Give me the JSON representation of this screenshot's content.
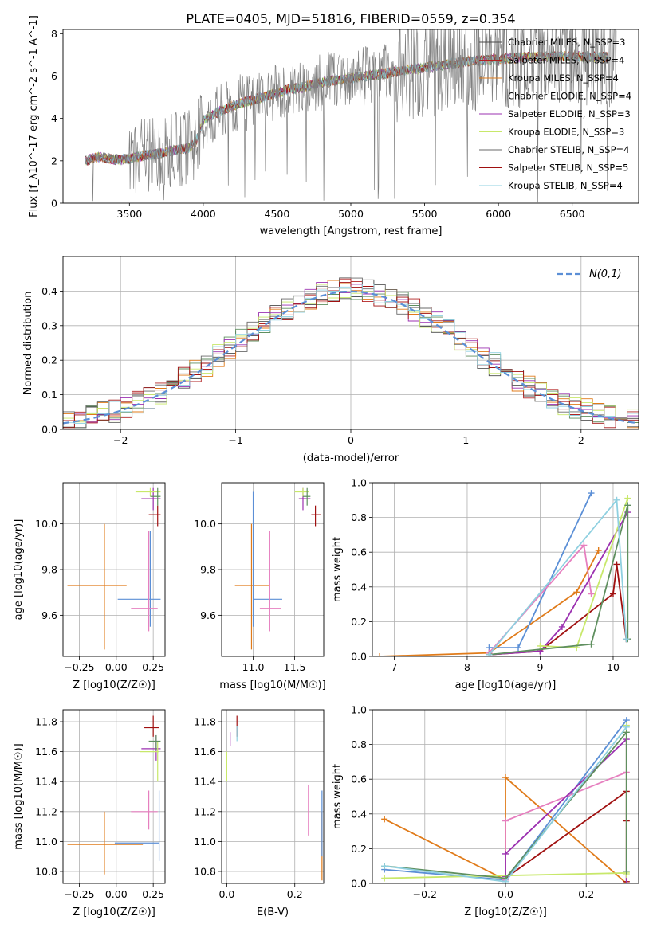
{
  "title": "PLATE=0405, MJD=51816, FIBERID=0559, z=0.354",
  "colors": {
    "chabrier_miles": "#4a4a4a",
    "salpeter_miles": "#b22222",
    "kroupa_miles": "#e07b1a",
    "chabrier_elodie": "#5f8f5f",
    "salpeter_elodie": "#9b30b0",
    "kroupa_elodie": "#c8e86a",
    "chabrier_stelib": "#6a6a6a",
    "salpeter_stelib": "#a01010",
    "kroupa_stelib": "#8fd0e0",
    "normal_fit": "#5b8fd6",
    "pink": "#e67fbf",
    "blue": "#5b8fd6"
  },
  "chart_data": [
    {
      "panel": "spectrum",
      "type": "line",
      "xlabel": "wavelength [Angstrom, rest frame]",
      "ylabel": "Flux [f_λ10^-17 erg cm^-2 s^-1 A^-1]",
      "xlim": [
        3050,
        6950
      ],
      "ylim": [
        0,
        8.2
      ],
      "xticks": [
        3500,
        4000,
        4500,
        5000,
        5500,
        6000,
        6500
      ],
      "yticks": [
        0,
        2,
        4,
        6,
        8
      ],
      "legend_position": "top-right",
      "legend": [
        {
          "label": "Chabrier MILES, N_SSP=3",
          "color": "#4a4a4a"
        },
        {
          "label": "Salpeter MILES, N_SSP=4",
          "color": "#b22222"
        },
        {
          "label": "Kroupa MILES, N_SSP=4",
          "color": "#e07b1a"
        },
        {
          "label": "Chabrier ELODIE, N_SSP=4",
          "color": "#5f8f5f"
        },
        {
          "label": "Salpeter ELODIE, N_SSP=3",
          "color": "#9b30b0"
        },
        {
          "label": "Kroupa ELODIE, N_SSP=3",
          "color": "#c8e86a"
        },
        {
          "label": "Chabrier STELIB, N_SSP=4",
          "color": "#6a6a6a"
        },
        {
          "label": "Salpeter STELIB, N_SSP=5",
          "color": "#a01010"
        },
        {
          "label": "Kroupa STELIB, N_SSP=4",
          "color": "#8fd0e0"
        }
      ],
      "continuum": {
        "x": [
          3200,
          3300,
          3400,
          3500,
          3600,
          3700,
          3800,
          3900,
          3950,
          4000,
          4100,
          4200,
          4300,
          4400,
          4500,
          4600,
          4700,
          4800,
          4900,
          5000,
          5100,
          5200,
          5300,
          5400,
          5500,
          5600,
          5700,
          5800,
          5900,
          6000,
          6100,
          6200,
          6300,
          6400,
          6500,
          6600,
          6700,
          6800
        ],
        "y": [
          2.0,
          2.2,
          2.05,
          2.1,
          2.25,
          2.35,
          2.5,
          2.6,
          2.9,
          3.9,
          4.3,
          4.6,
          4.8,
          5.0,
          5.2,
          5.4,
          5.5,
          5.7,
          5.8,
          5.9,
          6.0,
          6.1,
          6.2,
          6.3,
          6.4,
          6.5,
          6.6,
          6.7,
          6.75,
          6.8,
          6.85,
          6.9,
          6.9,
          6.95,
          6.95,
          6.9,
          6.9,
          6.9
        ]
      },
      "grid": false
    },
    {
      "panel": "residual_histogram",
      "type": "line",
      "xlabel": "(data-model)/error",
      "ylabel": "Normed distribution",
      "xlim": [
        -2.5,
        2.5
      ],
      "ylim": [
        0,
        0.5
      ],
      "xticks": [
        -2,
        -1,
        0,
        1,
        2
      ],
      "yticks": [
        0.0,
        0.1,
        0.2,
        0.3,
        0.4
      ],
      "legend": [
        {
          "label": "N(0,1)",
          "color": "#5b8fd6"
        }
      ],
      "legend_position": "top-right",
      "grid": true,
      "bin_width": 0.1
    },
    {
      "panel": "age_vs_Z",
      "type": "scatter",
      "xlabel": "Z [log10(Z/Z☉)]",
      "ylabel": "age [log10(age/yr)]",
      "xlim": [
        -0.36,
        0.33
      ],
      "ylim": [
        9.42,
        10.18
      ],
      "xticks": [
        -0.25,
        0.0,
        0.25
      ],
      "yticks": [
        9.6,
        9.8,
        10.0
      ],
      "grid": true,
      "points": [
        {
          "x": -0.08,
          "y": 9.73,
          "xerr": [
            0.25,
            0.15
          ],
          "yerr": [
            0.28,
            0.27
          ],
          "color": "#e07b1a"
        },
        {
          "x": 0.23,
          "y": 9.67,
          "xerr": [
            0.22,
            0.07
          ],
          "yerr": [
            0.12,
            0.3
          ],
          "color": "#5b8fd6"
        },
        {
          "x": 0.22,
          "y": 9.63,
          "xerr": [
            0.12,
            0.06
          ],
          "yerr": [
            0.1,
            0.34
          ],
          "color": "#e67fbf"
        },
        {
          "x": 0.28,
          "y": 10.04,
          "xerr": [
            0.06,
            0.02
          ],
          "yerr": [
            0.05,
            0.04
          ],
          "color": "#a01010"
        },
        {
          "x": 0.25,
          "y": 10.11,
          "xerr": [
            0.08,
            0.05
          ],
          "yerr": [
            0.05,
            0.05
          ],
          "color": "#9b30b0"
        },
        {
          "x": 0.23,
          "y": 10.14,
          "xerr": [
            0.1,
            0.07
          ],
          "yerr": [
            0.02,
            0.02
          ],
          "color": "#c8e86a"
        },
        {
          "x": 0.28,
          "y": 10.12,
          "xerr": [
            0.05,
            0.02
          ],
          "yerr": [
            0.04,
            0.04
          ],
          "color": "#5f8f5f"
        }
      ]
    },
    {
      "panel": "age_vs_mass",
      "type": "scatter",
      "xlabel": "mass [log10(M/M☉)]",
      "ylabel": "",
      "xlim": [
        10.62,
        11.85
      ],
      "ylim": [
        9.42,
        10.18
      ],
      "xticks": [
        11.0,
        11.5
      ],
      "yticks": [
        9.6,
        9.8,
        10.0
      ],
      "grid": true,
      "points": [
        {
          "x": 10.98,
          "y": 9.73,
          "xerr": [
            0.2,
            0.22
          ],
          "yerr": [
            0.28,
            0.27
          ],
          "color": "#e07b1a"
        },
        {
          "x": 11.0,
          "y": 9.67,
          "xerr": [
            0.0,
            0.35
          ],
          "yerr": [
            0.12,
            0.47
          ],
          "color": "#5b8fd6"
        },
        {
          "x": 11.2,
          "y": 9.63,
          "xerr": [
            0.12,
            0.14
          ],
          "yerr": [
            0.1,
            0.34
          ],
          "color": "#e67fbf"
        },
        {
          "x": 11.75,
          "y": 10.04,
          "xerr": [
            0.05,
            0.07
          ],
          "yerr": [
            0.05,
            0.04
          ],
          "color": "#a01010"
        },
        {
          "x": 11.6,
          "y": 10.11,
          "xerr": [
            0.05,
            0.09
          ],
          "yerr": [
            0.05,
            0.05
          ],
          "color": "#9b30b0"
        },
        {
          "x": 11.6,
          "y": 10.14,
          "xerr": [
            0.1,
            0.07
          ],
          "yerr": [
            0.02,
            0.02
          ],
          "color": "#c8e86a"
        },
        {
          "x": 11.65,
          "y": 10.12,
          "xerr": [
            0.05,
            0.04
          ],
          "yerr": [
            0.04,
            0.04
          ],
          "color": "#5f8f5f"
        }
      ]
    },
    {
      "panel": "mass_weight_vs_age",
      "type": "line",
      "xlabel": "age [log10(age/yr)]",
      "ylabel": "mass weight",
      "xlim": [
        6.7,
        10.35
      ],
      "ylim": [
        0,
        1.0
      ],
      "xticks": [
        7,
        8,
        9,
        10
      ],
      "yticks": [
        0.0,
        0.2,
        0.4,
        0.6,
        0.8,
        1.0
      ],
      "grid": true,
      "series": [
        {
          "color": "#e07b1a",
          "x": [
            6.8,
            8.3,
            9.5,
            9.8
          ],
          "y": [
            0.0,
            0.02,
            0.37,
            0.61
          ]
        },
        {
          "color": "#5b8fd6",
          "x": [
            8.3,
            8.7,
            9.7
          ],
          "y": [
            0.05,
            0.05,
            0.94
          ]
        },
        {
          "color": "#e67fbf",
          "x": [
            8.3,
            9.6,
            9.7
          ],
          "y": [
            0.02,
            0.64,
            0.36
          ]
        },
        {
          "color": "#a01010",
          "x": [
            8.3,
            9.0,
            10.0,
            10.05,
            10.18
          ],
          "y": [
            0.01,
            0.03,
            0.36,
            0.53,
            0.1
          ]
        },
        {
          "color": "#9b30b0",
          "x": [
            8.3,
            9.0,
            9.3,
            10.2
          ],
          "y": [
            0.01,
            0.03,
            0.17,
            0.83
          ]
        },
        {
          "color": "#c8e86a",
          "x": [
            9.0,
            9.5,
            10.2
          ],
          "y": [
            0.06,
            0.05,
            0.91
          ]
        },
        {
          "color": "#5f8f5f",
          "x": [
            8.3,
            9.7,
            10.2,
            10.2
          ],
          "y": [
            0.01,
            0.07,
            0.87,
            0.1
          ]
        },
        {
          "color": "#8fd0e0",
          "x": [
            8.3,
            10.05,
            10.18
          ],
          "y": [
            0.01,
            0.9,
            0.1
          ]
        }
      ]
    },
    {
      "panel": "mass_vs_Z",
      "type": "scatter",
      "xlabel": "Z [log10(Z/Z☉)]",
      "ylabel": "mass [log10(M/M☉)]",
      "xlim": [
        -0.36,
        0.33
      ],
      "ylim": [
        10.72,
        11.88
      ],
      "xticks": [
        -0.25,
        0.0,
        0.25
      ],
      "yticks": [
        10.8,
        11.0,
        11.2,
        11.4,
        11.6,
        11.8
      ],
      "grid": true,
      "points": [
        {
          "x": -0.08,
          "y": 10.98,
          "xerr": [
            0.25,
            0.26
          ],
          "yerr": [
            0.2,
            0.22
          ],
          "color": "#e07b1a"
        },
        {
          "x": 0.29,
          "y": 10.99,
          "xerr": [
            0.3,
            0.0
          ],
          "yerr": [
            0.12,
            0.35
          ],
          "color": "#5b8fd6"
        },
        {
          "x": 0.22,
          "y": 11.2,
          "xerr": [
            0.12,
            0.06
          ],
          "yerr": [
            0.12,
            0.14
          ],
          "color": "#e67fbf"
        },
        {
          "x": 0.25,
          "y": 11.76,
          "xerr": [
            0.06,
            0.04
          ],
          "yerr": [
            0.06,
            0.08
          ],
          "color": "#a01010"
        },
        {
          "x": 0.27,
          "y": 11.62,
          "xerr": [
            0.1,
            0.03
          ],
          "yerr": [
            0.08,
            0.09
          ],
          "color": "#9b30b0"
        },
        {
          "x": 0.28,
          "y": 11.6,
          "xerr": [
            0.12,
            0.01
          ],
          "yerr": [
            0.2,
            0.07
          ],
          "color": "#c8e86a"
        },
        {
          "x": 0.27,
          "y": 11.67,
          "xerr": [
            0.05,
            0.03
          ],
          "yerr": [
            0.06,
            0.04
          ],
          "color": "#5f8f5f"
        }
      ]
    },
    {
      "panel": "mass_vs_EBV",
      "type": "scatter",
      "xlabel": "E(B-V)",
      "ylabel": "",
      "xlim": [
        -0.015,
        0.285
      ],
      "ylim": [
        10.72,
        11.88
      ],
      "xticks": [
        0.0,
        0.2
      ],
      "yticks": [
        10.8,
        11.0,
        11.2,
        11.4,
        11.6,
        11.8
      ],
      "grid": true,
      "points": [
        {
          "x": 0.28,
          "y": 10.98,
          "yerr": [
            0.24,
            0.22
          ],
          "color": "#e07b1a"
        },
        {
          "x": 0.28,
          "y": 11.1,
          "yerr": [
            0.2,
            0.24
          ],
          "color": "#5b8fd6"
        },
        {
          "x": 0.24,
          "y": 11.2,
          "yerr": [
            0.16,
            0.18
          ],
          "color": "#e67fbf"
        },
        {
          "x": 0.03,
          "y": 11.76,
          "yerr": [
            0.06,
            0.08
          ],
          "color": "#a01010"
        },
        {
          "x": 0.01,
          "y": 11.68,
          "yerr": [
            0.04,
            0.05
          ],
          "color": "#9b30b0"
        },
        {
          "x": 0.0,
          "y": 11.5,
          "yerr": [
            0.1,
            0.1
          ],
          "color": "#c8e86a"
        },
        {
          "x": 0.03,
          "y": 11.72,
          "yerr": [
            0.05,
            0.05
          ],
          "color": "#8fd0e0"
        }
      ]
    },
    {
      "panel": "mass_weight_vs_Z",
      "type": "line",
      "xlabel": "Z [log10(Z/Z☉)]",
      "ylabel": "mass weight",
      "xlim": [
        -0.33,
        0.33
      ],
      "ylim": [
        0,
        1.0
      ],
      "xticks": [
        -0.2,
        0.0,
        0.2
      ],
      "yticks": [
        0.0,
        0.2,
        0.4,
        0.6,
        0.8,
        1.0
      ],
      "grid": true,
      "series": [
        {
          "color": "#e07b1a",
          "x": [
            -0.3,
            0.0,
            0.0,
            0.3
          ],
          "y": [
            0.37,
            0.02,
            0.61,
            0.0
          ]
        },
        {
          "color": "#5b8fd6",
          "x": [
            -0.3,
            0.0,
            0.3
          ],
          "y": [
            0.08,
            0.02,
            0.94
          ]
        },
        {
          "color": "#e67fbf",
          "x": [
            0.0,
            0.0,
            0.3
          ],
          "y": [
            0.02,
            0.36,
            0.64
          ]
        },
        {
          "color": "#a01010",
          "x": [
            0.0,
            0.3,
            0.3,
            0.3
          ],
          "y": [
            0.03,
            0.53,
            0.36,
            0.01
          ]
        },
        {
          "color": "#9b30b0",
          "x": [
            0.0,
            0.0,
            0.3,
            0.3
          ],
          "y": [
            0.04,
            0.17,
            0.83,
            0.0
          ]
        },
        {
          "color": "#c8e86a",
          "x": [
            -0.3,
            0.3,
            0.3,
            0.3
          ],
          "y": [
            0.03,
            0.06,
            0.91,
            0.05
          ]
        },
        {
          "color": "#5f8f5f",
          "x": [
            -0.3,
            0.0,
            0.3,
            0.3
          ],
          "y": [
            0.1,
            0.03,
            0.87,
            0.07
          ]
        },
        {
          "color": "#8fd0e0",
          "x": [
            -0.3,
            0.0,
            0.3
          ],
          "y": [
            0.1,
            0.01,
            0.9
          ]
        }
      ]
    }
  ]
}
